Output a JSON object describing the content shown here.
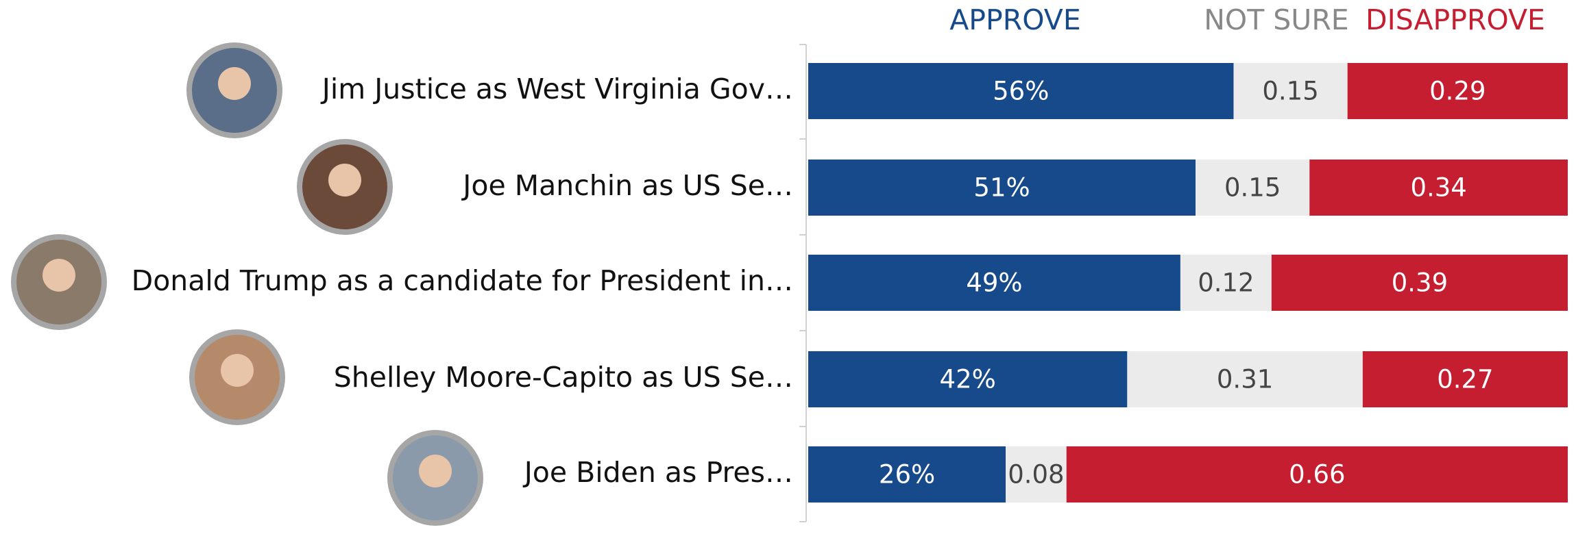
{
  "chart_data": {
    "type": "stacked-bar-horizontal",
    "categories": [
      "Jim Justice as West Virginia Gov…",
      "Joe Manchin as US Se…",
      "Donald Trump as a candidate for President in…",
      "Shelley Moore-Capito as US Se…",
      "Joe Biden as Pres…"
    ],
    "xlim": [
      0,
      1
    ],
    "series": [
      {
        "name": "APPROVE",
        "color": "#174a8b",
        "label_color": "#ffffff",
        "values": [
          0.56,
          0.51,
          0.49,
          0.42,
          0.26
        ],
        "value_labels": [
          "56%",
          "51%",
          "49%",
          "42%",
          "26%"
        ]
      },
      {
        "name": "NOT SURE",
        "color": "#ebebeb",
        "label_color": "#444444",
        "values": [
          0.15,
          0.15,
          0.12,
          0.31,
          0.08
        ]
      },
      {
        "name": "DISAPPROVE",
        "color": "#c41e30",
        "label_color": "#ffffff",
        "values": [
          0.29,
          0.34,
          0.39,
          0.27,
          0.66
        ]
      }
    ]
  }
}
